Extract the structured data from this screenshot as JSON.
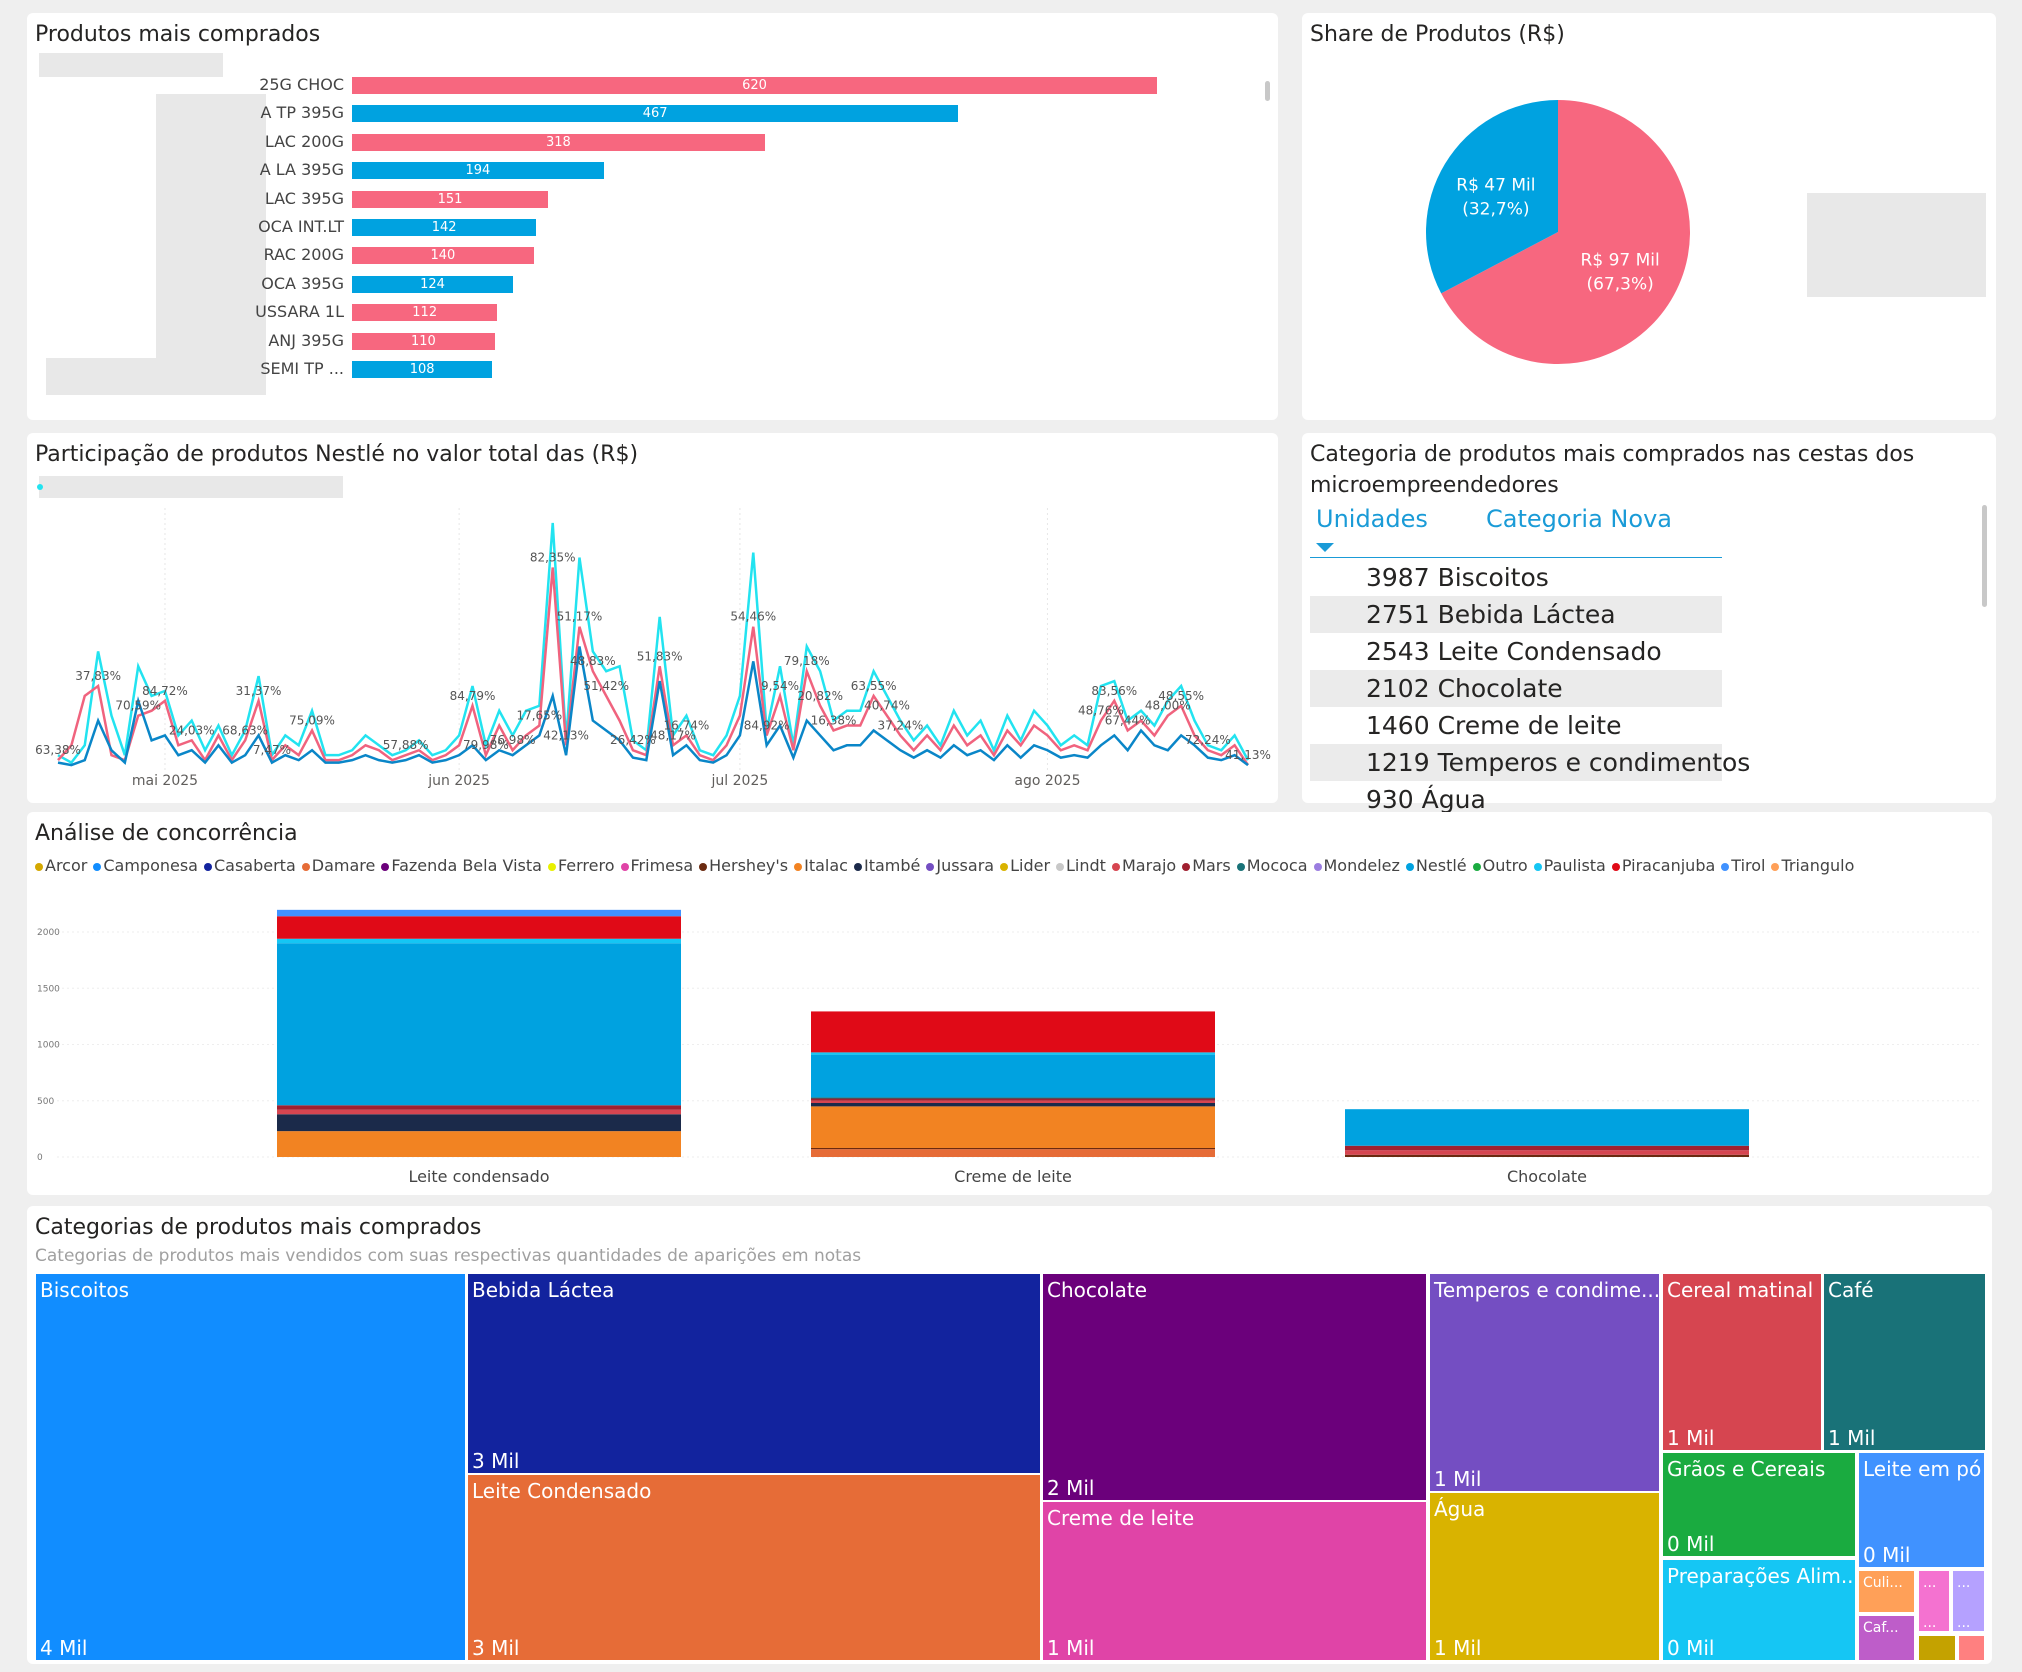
{
  "top_products": {
    "title": "Produtos mais comprados",
    "bars": [
      {
        "label": "25G CHOC",
        "value": 620,
        "color": "#f7677f"
      },
      {
        "label": "A TP 395G",
        "value": 467,
        "color": "#00a2e0"
      },
      {
        "label": "LAC 200G",
        "value": 318,
        "color": "#f7677f"
      },
      {
        "label": "A LA 395G",
        "value": 194,
        "color": "#00a2e0"
      },
      {
        "label": "LAC 395G",
        "value": 151,
        "color": "#f7677f"
      },
      {
        "label": "OCA INT.LT",
        "value": 142,
        "color": "#00a2e0"
      },
      {
        "label": "RAC 200G",
        "value": 140,
        "color": "#f7677f"
      },
      {
        "label": "OCA 395G",
        "value": 124,
        "color": "#00a2e0"
      },
      {
        "label": "USSARA 1L",
        "value": 112,
        "color": "#f7677f"
      },
      {
        "label": "ANJ 395G",
        "value": 110,
        "color": "#f7677f"
      },
      {
        "label": "SEMI TP ...",
        "value": 108,
        "color": "#00a2e0"
      }
    ]
  },
  "share": {
    "title": "Share de Produtos (R$)",
    "slices": [
      {
        "value": 67.3,
        "line1": "R$ 97 Mil",
        "line2": "(67,3%)",
        "color": "#f7677f"
      },
      {
        "value": 32.7,
        "line1": "R$ 47 Mil",
        "line2": "(32,7%)",
        "color": "#00a2e0"
      }
    ]
  },
  "participation": {
    "title": "Participação de produtos Nestlé no valor total das (R$)",
    "months": [
      "mai 2025",
      "jun 2025",
      "jul 2025",
      "ago 2025"
    ],
    "month_index": [
      8,
      30,
      51,
      74
    ],
    "series": [
      {
        "color": "#22e3f0",
        "values": [
          6,
          3,
          10,
          48,
          22,
          6,
          42,
          30,
          32,
          14,
          20,
          8,
          18,
          6,
          16,
          38,
          6,
          14,
          10,
          24,
          6,
          6,
          8,
          14,
          10,
          6,
          8,
          12,
          6,
          8,
          14,
          34,
          10,
          24,
          14,
          24,
          26,
          100,
          12,
          86,
          48,
          40,
          42,
          12,
          8,
          62,
          14,
          22,
          8,
          6,
          14,
          30,
          88,
          16,
          42,
          10,
          50,
          40,
          20,
          24,
          24,
          40,
          30,
          20,
          12,
          18,
          10,
          24,
          14,
          20,
          8,
          22,
          12,
          24,
          18,
          10,
          14,
          10,
          34,
          36,
          20,
          24,
          18,
          28,
          34,
          20,
          10,
          8,
          14,
          4
        ]
      },
      {
        "color": "#f0637e",
        "values": [
          4,
          10,
          30,
          34,
          6,
          4,
          22,
          24,
          28,
          10,
          12,
          4,
          14,
          4,
          12,
          28,
          4,
          10,
          6,
          16,
          4,
          4,
          6,
          10,
          8,
          4,
          6,
          8,
          4,
          6,
          10,
          26,
          6,
          18,
          8,
          14,
          18,
          82,
          10,
          58,
          40,
          30,
          20,
          8,
          6,
          42,
          10,
          14,
          6,
          4,
          10,
          22,
          58,
          14,
          30,
          8,
          40,
          26,
          16,
          18,
          18,
          30,
          22,
          14,
          8,
          14,
          8,
          18,
          10,
          14,
          6,
          16,
          10,
          18,
          14,
          8,
          10,
          8,
          20,
          28,
          16,
          20,
          14,
          22,
          26,
          14,
          8,
          6,
          10,
          2
        ]
      },
      {
        "color": "#0a86c8",
        "values": [
          3,
          2,
          4,
          20,
          8,
          3,
          28,
          12,
          14,
          6,
          8,
          3,
          10,
          3,
          6,
          14,
          3,
          6,
          4,
          8,
          3,
          3,
          4,
          6,
          4,
          3,
          4,
          6,
          3,
          4,
          6,
          10,
          4,
          8,
          6,
          10,
          14,
          30,
          6,
          50,
          20,
          16,
          12,
          5,
          4,
          36,
          6,
          10,
          4,
          3,
          6,
          14,
          44,
          10,
          18,
          5,
          20,
          14,
          8,
          10,
          10,
          16,
          12,
          8,
          5,
          8,
          5,
          10,
          6,
          8,
          4,
          10,
          5,
          10,
          8,
          5,
          6,
          5,
          10,
          14,
          8,
          16,
          10,
          8,
          14,
          10,
          5,
          4,
          6,
          2
        ]
      }
    ],
    "labels": [
      {
        "i": 0,
        "text": "63,38%"
      },
      {
        "i": 3,
        "text": "37,83%"
      },
      {
        "i": 6,
        "text": "70,59%"
      },
      {
        "i": 8,
        "text": "84,72%"
      },
      {
        "i": 10,
        "text": "24,03%"
      },
      {
        "i": 14,
        "text": "68,63%"
      },
      {
        "i": 15,
        "text": "31,37%"
      },
      {
        "i": 16,
        "text": "7,47%"
      },
      {
        "i": 19,
        "text": "75,09%"
      },
      {
        "i": 26,
        "text": "57,88%"
      },
      {
        "i": 31,
        "text": "84,79%"
      },
      {
        "i": 32,
        "text": "79,98%"
      },
      {
        "i": 34,
        "text": "76,98%"
      },
      {
        "i": 36,
        "text": "17,65%"
      },
      {
        "i": 37,
        "text": "82,35%"
      },
      {
        "i": 38,
        "text": "42,13%"
      },
      {
        "i": 39,
        "text": "51,17%"
      },
      {
        "i": 40,
        "text": "48,83%"
      },
      {
        "i": 41,
        "text": "51,42%"
      },
      {
        "i": 43,
        "text": "26,42%"
      },
      {
        "i": 45,
        "text": "51,83%"
      },
      {
        "i": 46,
        "text": "48,17%"
      },
      {
        "i": 47,
        "text": "16,74%"
      },
      {
        "i": 52,
        "text": "54,46%"
      },
      {
        "i": 53,
        "text": "84,92%"
      },
      {
        "i": 54,
        "text": "9,54%"
      },
      {
        "i": 56,
        "text": "79,18%"
      },
      {
        "i": 57,
        "text": "20,82%"
      },
      {
        "i": 58,
        "text": "16,38%"
      },
      {
        "i": 61,
        "text": "63,55%"
      },
      {
        "i": 62,
        "text": "40,74%"
      },
      {
        "i": 63,
        "text": "37,24%"
      },
      {
        "i": 78,
        "text": "48,76%"
      },
      {
        "i": 79,
        "text": "83,56%"
      },
      {
        "i": 80,
        "text": "67,44%"
      },
      {
        "i": 83,
        "text": "48,00%"
      },
      {
        "i": 84,
        "text": "48,55%"
      },
      {
        "i": 86,
        "text": "72,24%"
      },
      {
        "i": 89,
        "text": "41,13%"
      }
    ]
  },
  "category_table": {
    "title_line1": "Categoria de produtos mais comprados nas cestas dos",
    "title_line2": "microempreendedores",
    "col_units": "Unidades",
    "col_category": "Categoria Nova",
    "rows": [
      {
        "units": "3987",
        "category": "Biscoitos"
      },
      {
        "units": "2751",
        "category": "Bebida Láctea"
      },
      {
        "units": "2543",
        "category": "Leite Condensado"
      },
      {
        "units": "2102",
        "category": "Chocolate"
      },
      {
        "units": "1460",
        "category": "Creme de leite"
      },
      {
        "units": "1219",
        "category": "Temperos e condimentos"
      },
      {
        "units": "930",
        "category": "Água"
      }
    ]
  },
  "chart_data": {
    "type": "bar",
    "stacked": true,
    "title": "Análise de concorrência",
    "categories": [
      "Leite condensado",
      "Creme de leite",
      "Chocolate"
    ],
    "ylim": [
      0,
      2200
    ],
    "yticks": [
      0,
      500,
      1000,
      1500,
      2000
    ],
    "legend": "top-left",
    "series": [
      {
        "name": "Arcor",
        "color": "#d4a800",
        "values": [
          0,
          0,
          0
        ]
      },
      {
        "name": "Camponesa",
        "color": "#118dff",
        "values": [
          0,
          0,
          0
        ]
      },
      {
        "name": "Casaberta",
        "color": "#12239e",
        "values": [
          0,
          0,
          0
        ]
      },
      {
        "name": "Damare",
        "color": "#e66c37",
        "values": [
          0,
          70,
          0
        ]
      },
      {
        "name": "Fazenda Bela Vista",
        "color": "#6b007b",
        "values": [
          0,
          0,
          0
        ]
      },
      {
        "name": "Ferrero",
        "color": "#e8f000",
        "values": [
          0,
          0,
          0
        ]
      },
      {
        "name": "Frimesa",
        "color": "#e044a7",
        "values": [
          0,
          0,
          0
        ]
      },
      {
        "name": "Hershey's",
        "color": "#6b2a10",
        "values": [
          0,
          10,
          20
        ]
      },
      {
        "name": "Italac",
        "color": "#f28322",
        "values": [
          230,
          370,
          0
        ]
      },
      {
        "name": "Itambé",
        "color": "#1b2a4a",
        "values": [
          150,
          30,
          0
        ]
      },
      {
        "name": "Jussara",
        "color": "#744ec2",
        "values": [
          0,
          0,
          0
        ]
      },
      {
        "name": "Lider",
        "color": "#d9b300",
        "values": [
          0,
          0,
          0
        ]
      },
      {
        "name": "Lindt",
        "color": "#c8c8c8",
        "values": [
          0,
          0,
          0
        ]
      },
      {
        "name": "Marajo",
        "color": "#d64550",
        "values": [
          40,
          20,
          40
        ]
      },
      {
        "name": "Mars",
        "color": "#a02030",
        "values": [
          40,
          20,
          40
        ]
      },
      {
        "name": "Mococa",
        "color": "#197278",
        "values": [
          0,
          10,
          0
        ]
      },
      {
        "name": "Mondelez",
        "color": "#9b7de0",
        "values": [
          0,
          0,
          0
        ]
      },
      {
        "name": "Nestlé",
        "color": "#00a2e0",
        "values": [
          1440,
          380,
          325
        ]
      },
      {
        "name": "Outro",
        "color": "#1aab40",
        "values": [
          0,
          0,
          0
        ]
      },
      {
        "name": "Paulista",
        "color": "#15c6f4",
        "values": [
          40,
          20,
          0
        ]
      },
      {
        "name": "Piracanjuba",
        "color": "#e00a17",
        "values": [
          200,
          364,
          0
        ]
      },
      {
        "name": "Tirol",
        "color": "#4092ff",
        "values": [
          57,
          0,
          0
        ]
      },
      {
        "name": "Triangulo",
        "color": "#ffa058",
        "values": [
          0,
          0,
          0
        ]
      }
    ]
  },
  "treemap": {
    "title": "Categorias de produtos mais comprados",
    "subtitle": "Categorias de produtos mais vendidos com suas respectivas quantidades de aparições em notas",
    "items": [
      {
        "name": "Biscoitos",
        "value": "4 Mil",
        "color": "#118dff"
      },
      {
        "name": "Bebida Láctea",
        "value": "3 Mil",
        "color": "#12239e"
      },
      {
        "name": "Leite Condensado",
        "value": "3 Mil",
        "color": "#e66c37"
      },
      {
        "name": "Chocolate",
        "value": "2 Mil",
        "color": "#6b007b"
      },
      {
        "name": "Creme de leite",
        "value": "1 Mil",
        "color": "#e044a7"
      },
      {
        "name": "Temperos e condime...",
        "value": "1 Mil",
        "color": "#744ec2"
      },
      {
        "name": "Água",
        "value": "1 Mil",
        "color": "#d9b300"
      },
      {
        "name": "Cereal matinal",
        "value": "1 Mil",
        "color": "#d64550"
      },
      {
        "name": "Café",
        "value": "1 Mil",
        "color": "#197278"
      },
      {
        "name": "Grãos e Cereais",
        "value": "0 Mil",
        "color": "#1aab40"
      },
      {
        "name": "Leite em pó",
        "value": "0 Mil",
        "color": "#4092ff"
      },
      {
        "name": "Preparações Alim...",
        "value": "0 Mil",
        "color": "#15c6f4"
      },
      {
        "name": "Culi...",
        "value": "",
        "color": "#ffa058"
      },
      {
        "name": "Caf...",
        "value": "",
        "color": "#be5dc9"
      },
      {
        "name": "...",
        "value": "...",
        "color": "#f472d0"
      },
      {
        "name": "...",
        "value": "...",
        "color": "#b5a1ff"
      },
      {
        "name": "",
        "value": "",
        "color": "#c4a200"
      },
      {
        "name": "",
        "value": "",
        "color": "#ff8080"
      }
    ]
  }
}
